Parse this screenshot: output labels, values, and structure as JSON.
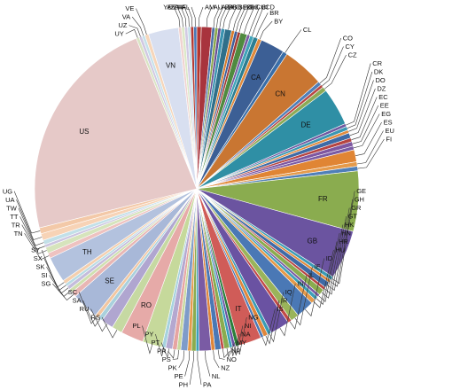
{
  "chart_data": {
    "type": "pie",
    "title": "",
    "start": "top, clockwise",
    "slices": [
      {
        "label": "AM",
        "value": 0.6,
        "color": "#b3362f"
      },
      {
        "label": "AU",
        "value": 1.4,
        "color": "#a8343d"
      },
      {
        "label": "AZ",
        "value": 0.4,
        "color": "#4c6fa8"
      },
      {
        "label": "BA",
        "value": 0.4,
        "color": "#8aa84b"
      },
      {
        "label": "BB",
        "value": 0.4,
        "color": "#6a4f94"
      },
      {
        "label": "BD",
        "value": 0.5,
        "color": "#3b93b0"
      },
      {
        "label": "BE",
        "value": 0.9,
        "color": "#2f6f8a"
      },
      {
        "label": "BG",
        "value": 0.4,
        "color": "#d87b2b"
      },
      {
        "label": "BH",
        "value": 0.4,
        "color": "#3d5f9b"
      },
      {
        "label": "BJ",
        "value": 0.4,
        "color": "#a33a33"
      },
      {
        "label": "CH",
        "value": 0.9,
        "color": "#4f8a3f"
      },
      {
        "label": "CI",
        "value": 0.4,
        "color": "#7a5aa0"
      },
      {
        "label": "CD",
        "value": 0.5,
        "color": "#3fa4b8"
      },
      {
        "label": "BR",
        "value": 0.6,
        "color": "#2b7e92"
      },
      {
        "label": "BY",
        "value": 0.5,
        "color": "#e08a3c"
      },
      {
        "label": "CA",
        "value": 3.2,
        "color": "#3c5f95"
      },
      {
        "label": "CL",
        "value": 0.6,
        "color": "#3a6ea8"
      },
      {
        "label": "CN",
        "value": 5.5,
        "color": "#c97632"
      },
      {
        "label": "CO",
        "value": 0.5,
        "color": "#4f7fb8"
      },
      {
        "label": "CY",
        "value": 0.4,
        "color": "#b84642"
      },
      {
        "label": "CZ",
        "value": 0.6,
        "color": "#8caa55"
      },
      {
        "label": "DE",
        "value": 5.0,
        "color": "#2f8fa5"
      },
      {
        "label": "CR",
        "value": 0.4,
        "color": "#6f58a0"
      },
      {
        "label": "DK",
        "value": 0.5,
        "color": "#3a97b3"
      },
      {
        "label": "DO",
        "value": 0.4,
        "color": "#e08a3c"
      },
      {
        "label": "DZ",
        "value": 0.7,
        "color": "#3d6aa6"
      },
      {
        "label": "EC",
        "value": 0.5,
        "color": "#b64441"
      },
      {
        "label": "EE",
        "value": 0.6,
        "color": "#7e56a0"
      },
      {
        "label": "EG",
        "value": 0.5,
        "color": "#7a5ba4"
      },
      {
        "label": "ES",
        "value": 1.6,
        "color": "#e08534"
      },
      {
        "label": "EU",
        "value": 0.6,
        "color": "#e59a4a"
      },
      {
        "label": "FI",
        "value": 0.6,
        "color": "#4f7fb8"
      },
      {
        "label": "FR",
        "value": 8.0,
        "color": "#8aac4f"
      },
      {
        "label": "GB",
        "value": 6.5,
        "color": "#6b54a0"
      },
      {
        "label": "GE",
        "value": 0.5,
        "color": "#3a9bb5"
      },
      {
        "label": "GH",
        "value": 0.4,
        "color": "#e08a3c"
      },
      {
        "label": "GR",
        "value": 0.8,
        "color": "#3e6aa6"
      },
      {
        "label": "GT",
        "value": 0.4,
        "color": "#b84642"
      },
      {
        "label": "HK",
        "value": 0.8,
        "color": "#8aac4f"
      },
      {
        "label": "HN",
        "value": 0.4,
        "color": "#7a5ba4"
      },
      {
        "label": "HR",
        "value": 0.5,
        "color": "#3ea0b8"
      },
      {
        "label": "HU",
        "value": 0.6,
        "color": "#e59a4a"
      },
      {
        "label": "ID",
        "value": 2.4,
        "color": "#4a78b5"
      },
      {
        "label": "IE",
        "value": 1.1,
        "color": "#9ab45a"
      },
      {
        "label": "IL",
        "value": 0.5,
        "color": "#c24a47"
      },
      {
        "label": "IN",
        "value": 2.6,
        "color": "#6a52a2"
      },
      {
        "label": "IQ",
        "value": 0.5,
        "color": "#3a9bb5"
      },
      {
        "label": "IR",
        "value": 0.6,
        "color": "#e0863a"
      },
      {
        "label": "IS",
        "value": 0.4,
        "color": "#4a78b5"
      },
      {
        "label": "IT",
        "value": 3.0,
        "color": "#d05c58"
      },
      {
        "label": "NG",
        "value": 0.5,
        "color": "#2a7e3a"
      },
      {
        "label": "NI",
        "value": 0.4,
        "color": "#6a52a2"
      },
      {
        "label": "NA",
        "value": 0.4,
        "color": "#3aa0b8"
      },
      {
        "label": "MY",
        "value": 0.7,
        "color": "#8aac4f"
      },
      {
        "label": "NP",
        "value": 0.4,
        "color": "#c24a47"
      },
      {
        "label": "NO",
        "value": 0.8,
        "color": "#4a78b5"
      },
      {
        "label": "NZ",
        "value": 0.5,
        "color": "#e0863a"
      },
      {
        "label": "NL",
        "value": 1.6,
        "color": "#7a5ba4"
      },
      {
        "label": "PA",
        "value": 0.4,
        "color": "#3aa0b8"
      },
      {
        "label": "PH",
        "value": 0.6,
        "color": "#8aac4f"
      },
      {
        "label": "PE",
        "value": 0.5,
        "color": "#e59a4a"
      },
      {
        "label": "PK",
        "value": 0.9,
        "color": "#7e9bc9"
      },
      {
        "label": "PS",
        "value": 0.5,
        "color": "#c8d89e"
      },
      {
        "label": "PR",
        "value": 0.6,
        "color": "#e6a4a2"
      },
      {
        "label": "PT",
        "value": 0.9,
        "color": "#b4a8d0"
      },
      {
        "label": "PY",
        "value": 0.5,
        "color": "#a6d2de"
      },
      {
        "label": "PL",
        "value": 2.6,
        "color": "#c6d99b"
      },
      {
        "label": "RO",
        "value": 3.0,
        "color": "#e6aaa8"
      },
      {
        "label": "RS",
        "value": 1.4,
        "color": "#c6d9a2"
      },
      {
        "label": "RU",
        "value": 1.6,
        "color": "#b0a6d0"
      },
      {
        "label": "SA",
        "value": 0.6,
        "color": "#a9d0dc"
      },
      {
        "label": "SC",
        "value": 0.5,
        "color": "#f2c6a0"
      },
      {
        "label": "SE",
        "value": 3.6,
        "color": "#a8b8d8"
      },
      {
        "label": "SG",
        "value": 0.7,
        "color": "#e8b6b4"
      },
      {
        "label": "SI",
        "value": 0.5,
        "color": "#cfe0b0"
      },
      {
        "label": "SK",
        "value": 0.5,
        "color": "#c4bcdc"
      },
      {
        "label": "SX",
        "value": 0.4,
        "color": "#b8dbe4"
      },
      {
        "label": "SY",
        "value": 0.5,
        "color": "#f4cfae"
      },
      {
        "label": "TH",
        "value": 3.4,
        "color": "#b3c2de"
      },
      {
        "label": "TN",
        "value": 0.7,
        "color": "#eec2c0"
      },
      {
        "label": "TR",
        "value": 0.8,
        "color": "#d6e4bc"
      },
      {
        "label": "TT",
        "value": 0.4,
        "color": "#ccc5e0"
      },
      {
        "label": "TW",
        "value": 0.6,
        "color": "#c2e0e8"
      },
      {
        "label": "UA",
        "value": 0.9,
        "color": "#f7d3b6"
      },
      {
        "label": "UG",
        "value": 0.8,
        "color": "#f3c9a8"
      },
      {
        "label": "US",
        "value": 30.3,
        "color": "#e6c9c8"
      },
      {
        "label": "UY",
        "value": 0.4,
        "color": "#d9e4c3"
      },
      {
        "label": "UZ",
        "value": 0.4,
        "color": "#d0c8e2"
      },
      {
        "label": "VA",
        "value": 0.4,
        "color": "#c6e1ea"
      },
      {
        "label": "VE",
        "value": 0.5,
        "color": "#f6d6ba"
      },
      {
        "label": "VN",
        "value": 4.0,
        "color": "#d8dff0"
      },
      {
        "label": "YE",
        "value": 0.4,
        "color": "#f0d2d0"
      },
      {
        "label": "AE",
        "value": 0.4,
        "color": "#dce9c8"
      },
      {
        "label": "ZA",
        "value": 0.4,
        "color": "#d2cae4"
      },
      {
        "label": "ZM",
        "value": 0.4,
        "color": "#c6e1ea"
      },
      {
        "label": "AF",
        "value": 0.4,
        "color": "#b33a33"
      },
      {
        "label": "AL",
        "value": 0.4,
        "color": "#4a78b5"
      }
    ]
  }
}
